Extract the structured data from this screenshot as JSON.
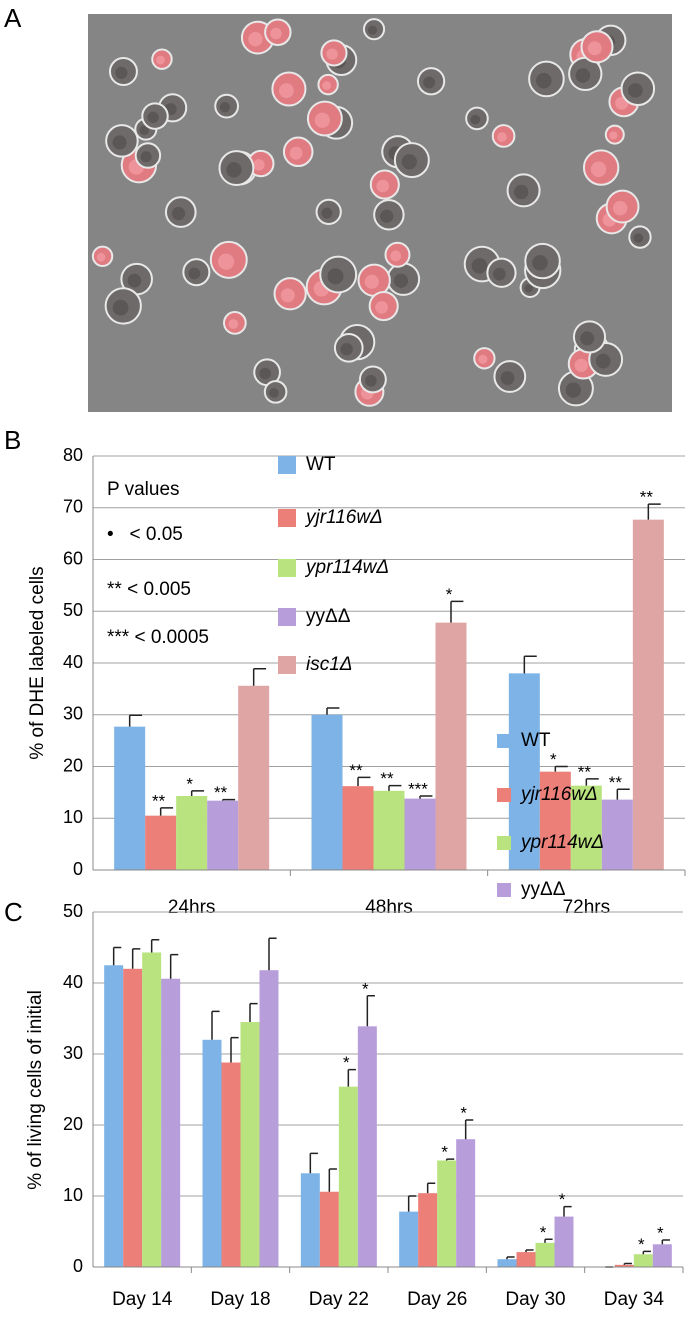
{
  "image_panel": {
    "label": "A"
  },
  "chart_data": [
    {
      "type": "bar",
      "panel_label": "B",
      "y_label": "% of DHE labeled cells",
      "categories": [
        "24hrs",
        "48hrs",
        "72hrs"
      ],
      "ylim": [
        0,
        80
      ],
      "yticks": [
        0,
        10,
        20,
        30,
        40,
        50,
        60,
        70,
        80
      ],
      "grid": true,
      "series": [
        {
          "name": "WT",
          "color": "#7db3e6",
          "italic": false,
          "values": [
            27.7,
            30,
            38
          ],
          "errors": [
            2.2,
            1.3,
            3.3
          ],
          "significance": [
            null,
            null,
            null
          ]
        },
        {
          "name": "yjr116wΔ",
          "color": "#ec7f78",
          "italic": true,
          "values": [
            10.5,
            16.2,
            19
          ],
          "errors": [
            1.5,
            1.7,
            1
          ],
          "significance": [
            "**",
            "**",
            "*"
          ]
        },
        {
          "name": "ypr114wΔ",
          "color": "#b8e37e",
          "italic": true,
          "values": [
            14.3,
            15.3,
            16.3
          ],
          "errors": [
            1,
            1,
            1.3
          ],
          "significance": [
            "*",
            "**",
            "**"
          ]
        },
        {
          "name": "yyΔΔ",
          "color": "#b89ddb",
          "italic": false,
          "values": [
            13.4,
            13.8,
            13.6
          ],
          "errors": [
            0.2,
            0.5,
            2
          ],
          "significance": [
            "**",
            "***",
            "**"
          ]
        },
        {
          "name": "isc1Δ",
          "color": "#dfa5a5",
          "italic": true,
          "values": [
            35.6,
            47.8,
            67.7
          ],
          "errors": [
            3.3,
            4.1,
            3
          ],
          "significance": [
            null,
            "*",
            "**"
          ]
        }
      ],
      "annotations": [
        "P values",
        "•   < 0.05",
        "** < 0.005",
        "*** < 0.0005"
      ]
    },
    {
      "type": "bar",
      "panel_label": "C",
      "y_label": "% of living cells of initial",
      "categories": [
        "Day 14",
        "Day 18",
        "Day 22",
        "Day 26",
        "Day 30",
        "Day 34"
      ],
      "ylim": [
        0,
        50
      ],
      "yticks": [
        0,
        10,
        20,
        30,
        40,
        50
      ],
      "grid": true,
      "series": [
        {
          "name": "WT",
          "color": "#7db3e6",
          "italic": false,
          "values": [
            42.5,
            32,
            13.2,
            7.8,
            1.1,
            0
          ],
          "errors": [
            2.5,
            4,
            2.8,
            2.2,
            0.3,
            0
          ],
          "significance": [
            null,
            null,
            null,
            null,
            null,
            null
          ]
        },
        {
          "name": "yjr116wΔ",
          "color": "#ec7f78",
          "italic": true,
          "values": [
            42,
            28.8,
            10.6,
            10.4,
            2.1,
            0.3
          ],
          "errors": [
            2.8,
            3.5,
            3.2,
            1.4,
            0.3,
            0.2
          ],
          "significance": [
            null,
            null,
            null,
            null,
            null,
            null
          ]
        },
        {
          "name": "ypr114wΔ",
          "color": "#b8e37e",
          "italic": true,
          "values": [
            44.3,
            34.5,
            25.4,
            15,
            3.4,
            1.8
          ],
          "errors": [
            1.8,
            2.6,
            2.4,
            0.2,
            0.5,
            0.4
          ],
          "significance": [
            null,
            null,
            "*",
            "*",
            "*",
            "*"
          ]
        },
        {
          "name": "yyΔΔ",
          "color": "#b89ddb",
          "italic": false,
          "values": [
            40.6,
            41.8,
            33.9,
            18,
            7.1,
            3.2
          ],
          "errors": [
            3.4,
            4.5,
            4.3,
            2.7,
            1.4,
            0.6
          ],
          "significance": [
            null,
            null,
            "*",
            "*",
            "*",
            "*"
          ]
        }
      ]
    }
  ]
}
